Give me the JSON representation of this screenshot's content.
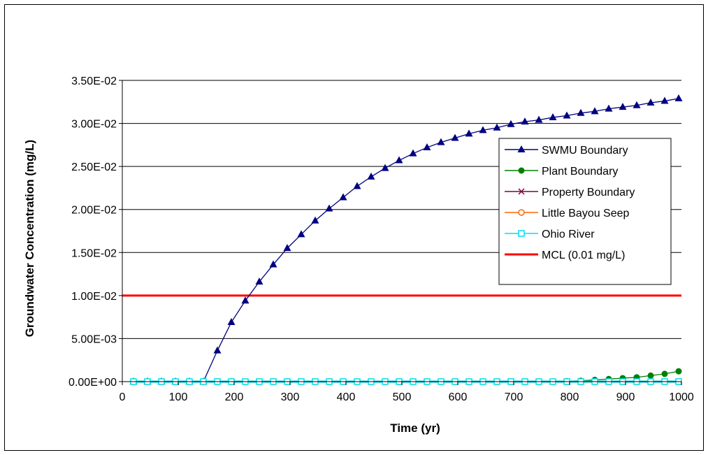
{
  "chart_data": {
    "type": "line",
    "xlabel": "Time (yr)",
    "ylabel": "Groundwater Concentration (mg/L)",
    "xlim": [
      0,
      1000
    ],
    "ylim": [
      0,
      0.035
    ],
    "x_ticks": [
      0,
      100,
      200,
      300,
      400,
      500,
      600,
      700,
      800,
      900,
      1000
    ],
    "y_ticks": [
      0,
      0.005,
      0.01,
      0.015,
      0.02,
      0.025,
      0.03,
      0.035
    ],
    "y_tick_labels": [
      "0.00E+00",
      "5.00E-03",
      "1.00E-02",
      "1.50E-02",
      "2.00E-02",
      "2.50E-02",
      "3.00E-02",
      "3.50E-02"
    ],
    "grid": "horizontal",
    "legend_position": "right",
    "x": [
      20,
      45,
      70,
      95,
      120,
      145,
      170,
      195,
      220,
      245,
      270,
      295,
      320,
      345,
      370,
      395,
      420,
      445,
      470,
      495,
      520,
      545,
      570,
      595,
      620,
      645,
      670,
      695,
      720,
      745,
      770,
      795,
      820,
      845,
      870,
      895,
      920,
      945,
      970,
      995
    ],
    "series": [
      {
        "name": "SWMU Boundary",
        "color": "#000080",
        "marker": "triangle",
        "values": [
          0,
          0,
          0,
          0,
          0,
          0,
          0.0036,
          0.0069,
          0.0094,
          0.0116,
          0.0136,
          0.0155,
          0.0171,
          0.0187,
          0.0201,
          0.0214,
          0.0227,
          0.0238,
          0.0248,
          0.0257,
          0.0265,
          0.0272,
          0.0278,
          0.0283,
          0.0288,
          0.0292,
          0.0295,
          0.0299,
          0.0302,
          0.0304,
          0.0307,
          0.0309,
          0.0312,
          0.0314,
          0.0317,
          0.0319,
          0.0321,
          0.0324,
          0.0326,
          0.0329
        ]
      },
      {
        "name": "Plant Boundary",
        "color": "#008000",
        "marker": "circle",
        "values": [
          0,
          0,
          0,
          0,
          0,
          0,
          0,
          0,
          0,
          0,
          0,
          0,
          0,
          0,
          0,
          0,
          0,
          0,
          0,
          0,
          0,
          0,
          0,
          0,
          0,
          0,
          0,
          0,
          0,
          0,
          0,
          5e-05,
          0.0001,
          0.0002,
          0.0003,
          0.0004,
          0.0005,
          0.0007,
          0.0009,
          0.0012
        ]
      },
      {
        "name": "Property Boundary",
        "color": "#800040",
        "marker": "x",
        "values": [
          0,
          0,
          0,
          0,
          0,
          0,
          0,
          0,
          0,
          0,
          0,
          0,
          0,
          0,
          0,
          0,
          0,
          0,
          0,
          0,
          0,
          0,
          0,
          0,
          0,
          0,
          0,
          0,
          0,
          0,
          0,
          0,
          0,
          0,
          0,
          0,
          0,
          0,
          0,
          0
        ]
      },
      {
        "name": "Little Bayou Seep",
        "color": "#FF6600",
        "marker": "open-circle",
        "values": [
          0,
          0,
          0,
          0,
          0,
          0,
          0,
          0,
          0,
          0,
          0,
          0,
          0,
          0,
          0,
          0,
          0,
          0,
          0,
          0,
          0,
          0,
          0,
          0,
          0,
          0,
          0,
          0,
          0,
          0,
          0,
          0,
          0,
          0,
          0,
          0,
          0,
          0,
          0,
          0
        ]
      },
      {
        "name": "Ohio River",
        "color": "#00DDEE",
        "marker": "open-square",
        "values": [
          0,
          0,
          0,
          0,
          0,
          0,
          0,
          0,
          0,
          0,
          0,
          0,
          0,
          0,
          0,
          0,
          0,
          0,
          0,
          0,
          0,
          0,
          0,
          0,
          0,
          0,
          0,
          0,
          0,
          0,
          0,
          0,
          0,
          0,
          0,
          0,
          0,
          0,
          0,
          0
        ]
      },
      {
        "name": "MCL (0.01 mg/L)",
        "color": "#FF0000",
        "marker": "none",
        "constant": 0.01
      }
    ]
  }
}
